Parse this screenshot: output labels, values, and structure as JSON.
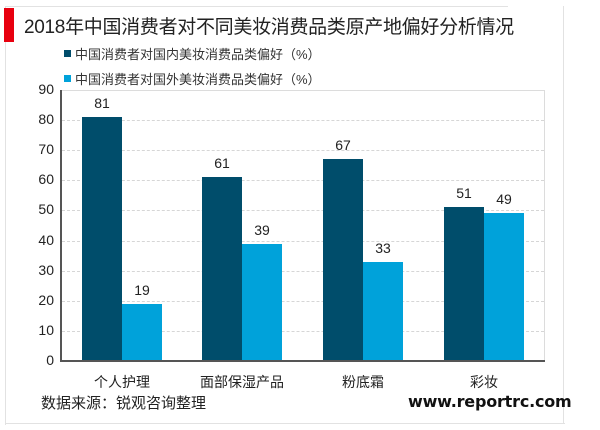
{
  "title": "2018年中国消费者对不同美妆消费品类原产地偏好分析情况",
  "legend": [
    {
      "label": "中国消费者对国内美妆消费品类偏好（%）",
      "color": "#004d6b"
    },
    {
      "label": "中国消费者对国外美妆消费品类偏好（%）",
      "color": "#00a2da"
    }
  ],
  "yaxis": {
    "ticks": [
      "0",
      "10",
      "20",
      "30",
      "40",
      "50",
      "60",
      "70",
      "80",
      "90"
    ]
  },
  "source": "数据来源：锐观咨询整理",
  "watermark": "www.reportrc.com",
  "accent_color": "#e8000f",
  "chart_data": {
    "type": "bar",
    "title": "2018年中国消费者对不同美妆消费品类原产地偏好分析情况",
    "categories": [
      "个人护理",
      "面部保湿产品",
      "粉底霜",
      "彩妆"
    ],
    "series": [
      {
        "name": "中国消费者对国内美妆消费品类偏好（%）",
        "values": [
          81,
          61,
          67,
          51
        ],
        "color": "#004d6b"
      },
      {
        "name": "中国消费者对国外美妆消费品类偏好（%）",
        "values": [
          19,
          39,
          33,
          49
        ],
        "color": "#00a2da"
      }
    ],
    "xlabel": "",
    "ylabel": "",
    "ylim": [
      0,
      90
    ],
    "yticks": [
      0,
      10,
      20,
      30,
      40,
      50,
      60,
      70,
      80,
      90
    ],
    "grid": true,
    "legend_position": "top-left",
    "data_labels": true
  }
}
